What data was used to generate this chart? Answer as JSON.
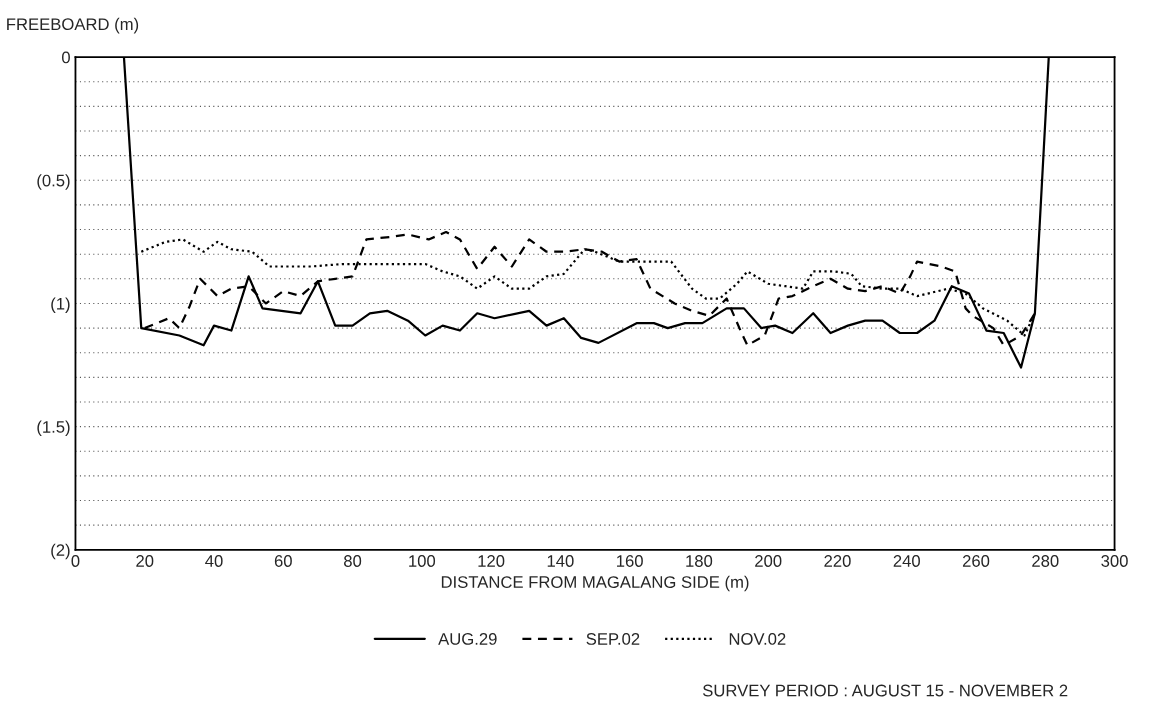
{
  "chart_data": {
    "type": "line",
    "xlabel": "DISTANCE FROM MAGALANG SIDE (m)",
    "ylabel": "FREEBOARD (m)",
    "annotations": [
      "SURVEY PERIOD : AUGUST 15 - NOVEMBER 2"
    ],
    "xlim": [
      0,
      300
    ],
    "xticks": [
      0,
      20,
      40,
      60,
      80,
      100,
      120,
      140,
      160,
      180,
      200,
      220,
      240,
      260,
      280,
      300
    ],
    "ylim": [
      -2,
      0
    ],
    "yticks": [
      0,
      {
        "value": -0.1,
        "label": null
      },
      {
        "value": -0.2,
        "label": null
      },
      {
        "value": -0.3,
        "label": null
      },
      {
        "value": -0.4,
        "label": null
      },
      {
        "value": -0.5,
        "label": "(0.5)"
      },
      {
        "value": -0.6,
        "label": null
      },
      {
        "value": -0.7,
        "label": null
      },
      {
        "value": -0.8,
        "label": null
      },
      {
        "value": -0.9,
        "label": null
      },
      {
        "value": -1,
        "label": "(1)"
      },
      {
        "value": -1.1,
        "label": null
      },
      {
        "value": -1.2,
        "label": null
      },
      {
        "value": -1.3,
        "label": null
      },
      {
        "value": -1.4,
        "label": null
      },
      {
        "value": -1.5,
        "label": "(1.5)"
      },
      {
        "value": -1.6,
        "label": null
      },
      {
        "value": -1.7,
        "label": null
      },
      {
        "value": -1.8,
        "label": null
      },
      {
        "value": -1.9,
        "label": null
      },
      {
        "value": -2,
        "label": "(2)"
      }
    ],
    "grid": "y",
    "legend": "bottom",
    "marker": "none",
    "series": [
      {
        "name": "AUG.29",
        "color": "#000000",
        "line_style": "solid",
        "x": [
          14,
          19,
          30,
          37,
          40,
          45,
          50,
          54,
          65,
          70,
          75,
          80,
          85,
          90,
          96,
          101,
          106,
          111,
          116,
          121,
          131,
          136,
          141,
          146,
          151,
          162,
          167,
          171,
          176,
          181,
          188,
          193,
          198,
          202,
          207,
          213,
          218,
          223,
          228,
          233,
          238,
          243,
          248,
          253,
          258,
          263,
          268,
          273,
          277,
          281
        ],
        "values": [
          0,
          -1.1,
          -1.13,
          -1.17,
          -1.09,
          -1.11,
          -0.89,
          -1.02,
          -1.04,
          -0.91,
          -1.09,
          -1.09,
          -1.04,
          -1.03,
          -1.07,
          -1.13,
          -1.09,
          -1.11,
          -1.04,
          -1.06,
          -1.03,
          -1.09,
          -1.06,
          -1.14,
          -1.16,
          -1.08,
          -1.08,
          -1.1,
          -1.08,
          -1.08,
          -1.02,
          -1.02,
          -1.1,
          -1.09,
          -1.12,
          -1.04,
          -1.12,
          -1.09,
          -1.07,
          -1.07,
          -1.12,
          -1.12,
          -1.07,
          -0.93,
          -0.96,
          -1.11,
          -1.12,
          -1.26,
          -1.04,
          0
        ]
      },
      {
        "name": "SEP.02",
        "color": "#000000",
        "line_style": "dashed",
        "x": [
          20,
          27,
          30,
          33,
          36,
          41,
          45,
          50,
          55,
          60,
          65,
          70,
          75,
          80,
          84,
          91,
          96,
          102,
          107,
          111,
          116,
          121,
          126,
          131,
          136,
          141,
          147,
          152,
          157,
          162,
          166,
          173,
          178,
          183,
          188,
          192,
          194,
          199,
          203,
          207,
          213,
          218,
          223,
          228,
          233,
          238,
          241,
          243,
          250,
          254,
          257,
          259,
          265,
          268,
          273,
          277
        ],
        "values": [
          -1.1,
          -1.06,
          -1.1,
          -1.01,
          -0.9,
          -0.97,
          -0.94,
          -0.93,
          -1.0,
          -0.95,
          -0.97,
          -0.91,
          -0.9,
          -0.89,
          -0.74,
          -0.73,
          -0.72,
          -0.74,
          -0.71,
          -0.74,
          -0.86,
          -0.77,
          -0.85,
          -0.74,
          -0.79,
          -0.79,
          -0.78,
          -0.79,
          -0.83,
          -0.82,
          -0.94,
          -1.0,
          -1.03,
          -1.05,
          -0.98,
          -1.11,
          -1.17,
          -1.13,
          -0.98,
          -0.97,
          -0.93,
          -0.9,
          -0.94,
          -0.95,
          -0.93,
          -0.96,
          -0.89,
          -0.83,
          -0.85,
          -0.87,
          -1.02,
          -1.05,
          -1.1,
          -1.17,
          -1.13,
          -1.04
        ]
      },
      {
        "name": "NOV.02",
        "color": "#000000",
        "line_style": "dotted",
        "x": [
          19,
          26,
          31,
          37,
          41,
          45,
          51,
          56,
          68,
          77,
          87,
          101,
          106,
          111,
          116,
          121,
          126,
          131,
          136,
          141,
          147,
          150,
          157,
          162,
          172,
          178,
          182,
          186,
          191,
          194,
          200,
          205,
          210,
          213,
          219,
          224,
          227,
          233,
          238,
          243,
          252,
          257,
          262,
          269,
          274,
          277
        ],
        "values": [
          -0.79,
          -0.75,
          -0.74,
          -0.79,
          -0.75,
          -0.78,
          -0.79,
          -0.85,
          -0.85,
          -0.84,
          -0.84,
          -0.84,
          -0.87,
          -0.89,
          -0.94,
          -0.89,
          -0.94,
          -0.94,
          -0.89,
          -0.88,
          -0.78,
          -0.79,
          -0.83,
          -0.83,
          -0.83,
          -0.94,
          -0.98,
          -0.98,
          -0.92,
          -0.87,
          -0.92,
          -0.93,
          -0.94,
          -0.87,
          -0.87,
          -0.88,
          -0.93,
          -0.94,
          -0.94,
          -0.97,
          -0.94,
          -0.96,
          -1.02,
          -1.07,
          -1.13,
          -1.04
        ]
      }
    ]
  }
}
